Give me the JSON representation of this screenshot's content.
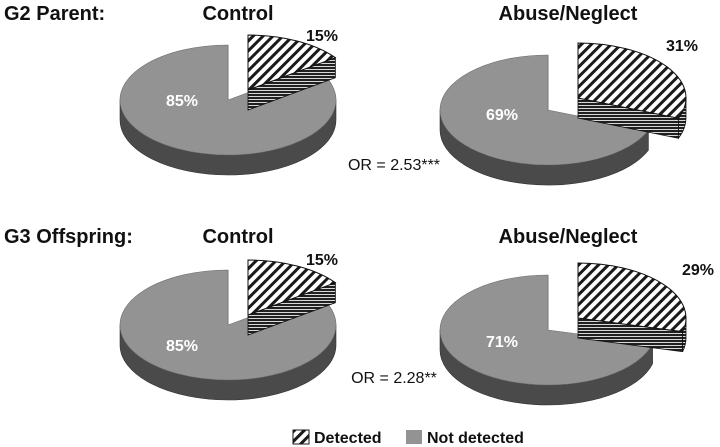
{
  "colors": {
    "not_detected_top": "#939393",
    "not_detected_side": "#4a4a4a",
    "detected_side": "#2a2a2a",
    "hatch": "#1a1a1a",
    "background": "#ffffff"
  },
  "legend": {
    "detected": "Detected",
    "not_detected": "Not detected",
    "placement": "bottom-center"
  },
  "rows": [
    {
      "label": "G2 Parent:",
      "or_text": "OR = 2.53***"
    },
    {
      "label": "G3 Offspring:",
      "or_text": "OR = 2.28**"
    }
  ],
  "chart_data": [
    {
      "type": "pie",
      "style": "3d-exploded",
      "title": "Control",
      "row": "G2 Parent:",
      "series": [
        {
          "name": "Detected",
          "value": 15,
          "label": "15%"
        },
        {
          "name": "Not detected",
          "value": 85,
          "label": "85%"
        }
      ]
    },
    {
      "type": "pie",
      "style": "3d-exploded",
      "title": "Abuse/Neglect",
      "row": "G2 Parent:",
      "series": [
        {
          "name": "Detected",
          "value": 31,
          "label": "31%"
        },
        {
          "name": "Not detected",
          "value": 69,
          "label": "69%"
        }
      ]
    },
    {
      "type": "pie",
      "style": "3d-exploded",
      "title": "Control",
      "row": "G3 Offspring:",
      "series": [
        {
          "name": "Detected",
          "value": 15,
          "label": "15%"
        },
        {
          "name": "Not detected",
          "value": 85,
          "label": "85%"
        }
      ]
    },
    {
      "type": "pie",
      "style": "3d-exploded",
      "title": "Abuse/Neglect",
      "row": "G3 Offspring:",
      "series": [
        {
          "name": "Detected",
          "value": 29,
          "label": "29%"
        },
        {
          "name": "Not detected",
          "value": 71,
          "label": "71%"
        }
      ]
    }
  ]
}
